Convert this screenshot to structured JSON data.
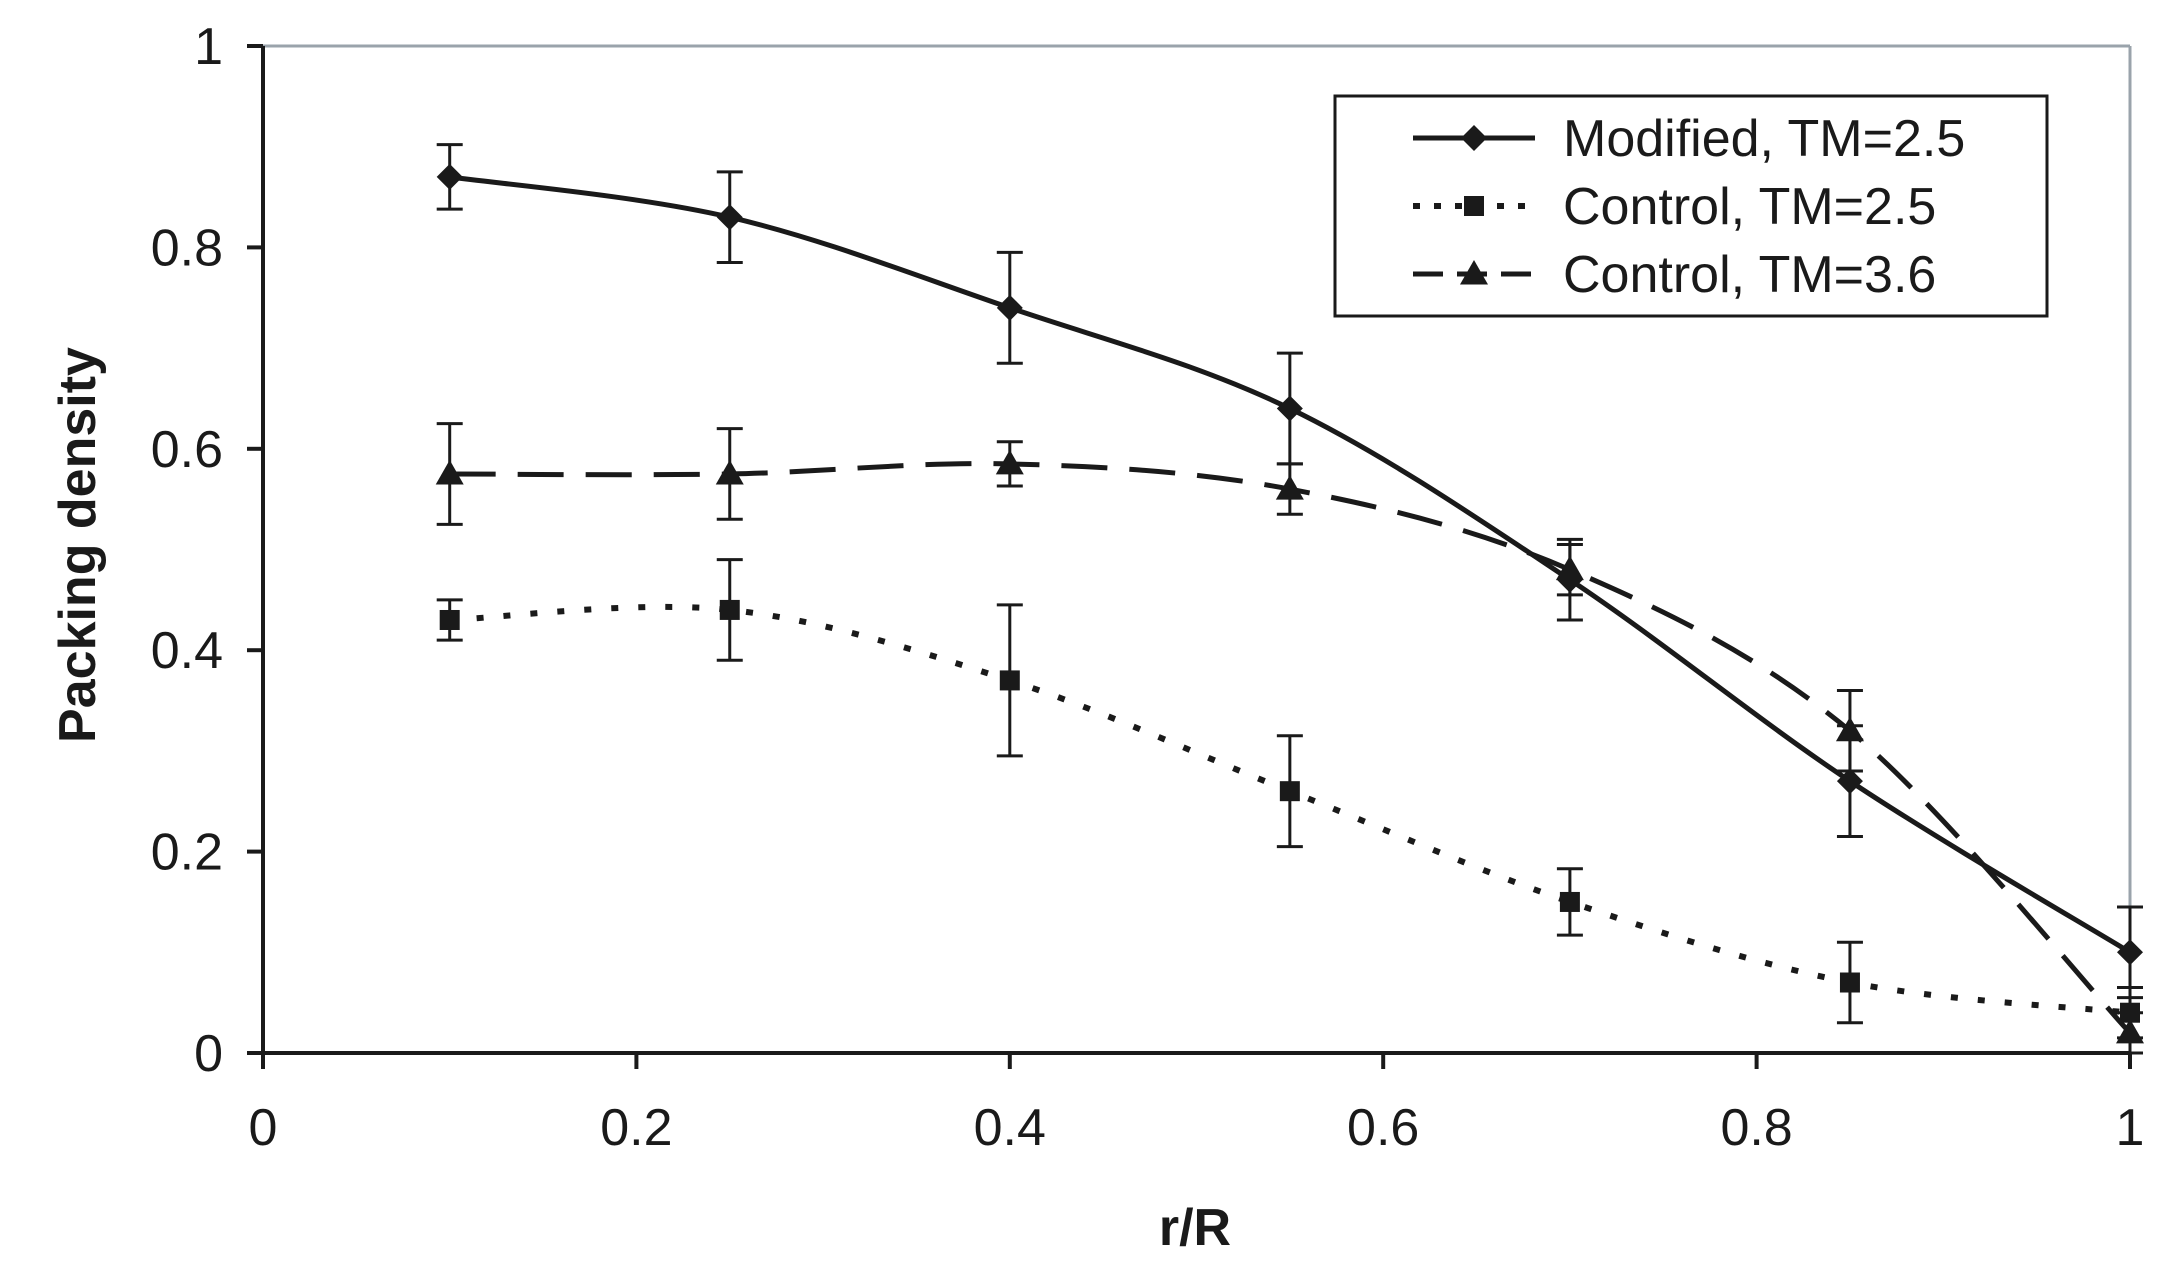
{
  "chart_data": {
    "type": "line",
    "title": "",
    "xlabel": "r/R",
    "ylabel": "Packing density",
    "xlim": [
      0,
      1
    ],
    "ylim": [
      0,
      1
    ],
    "xticks": [
      0,
      0.2,
      0.4,
      0.6,
      0.8,
      1
    ],
    "yticks": [
      0,
      0.2,
      0.4,
      0.6,
      0.8,
      1
    ],
    "xtick_labels": [
      "0",
      "0.2",
      "0.4",
      "0.6",
      "0.8",
      "1"
    ],
    "ytick_labels": [
      "0",
      "0.2",
      "0.4",
      "0.6",
      "0.8",
      "1"
    ],
    "grid": false,
    "legend_position": "top-right",
    "x": [
      0.1,
      0.25,
      0.4,
      0.55,
      0.7,
      0.85,
      1.0
    ],
    "series": [
      {
        "name": "Modified, TM=2.5",
        "line_style": "solid",
        "marker": "diamond",
        "values": [
          0.87,
          0.83,
          0.74,
          0.64,
          0.47,
          0.27,
          0.1
        ],
        "errors": [
          0.032,
          0.045,
          0.055,
          0.055,
          0.04,
          0.055,
          0.045
        ]
      },
      {
        "name": "Control, TM=2.5",
        "line_style": "dotted",
        "marker": "square",
        "values": [
          0.43,
          0.44,
          0.37,
          0.26,
          0.15,
          0.07,
          0.04
        ],
        "errors": [
          0.02,
          0.05,
          0.075,
          0.055,
          0.033,
          0.04,
          0.025
        ]
      },
      {
        "name": "Control, TM=3.6",
        "line_style": "dashed",
        "marker": "triangle",
        "values": [
          0.575,
          0.575,
          0.585,
          0.56,
          0.48,
          0.32,
          0.02
        ],
        "errors": [
          0.05,
          0.045,
          0.022,
          0.025,
          0.025,
          0.04,
          0.02
        ]
      }
    ]
  }
}
